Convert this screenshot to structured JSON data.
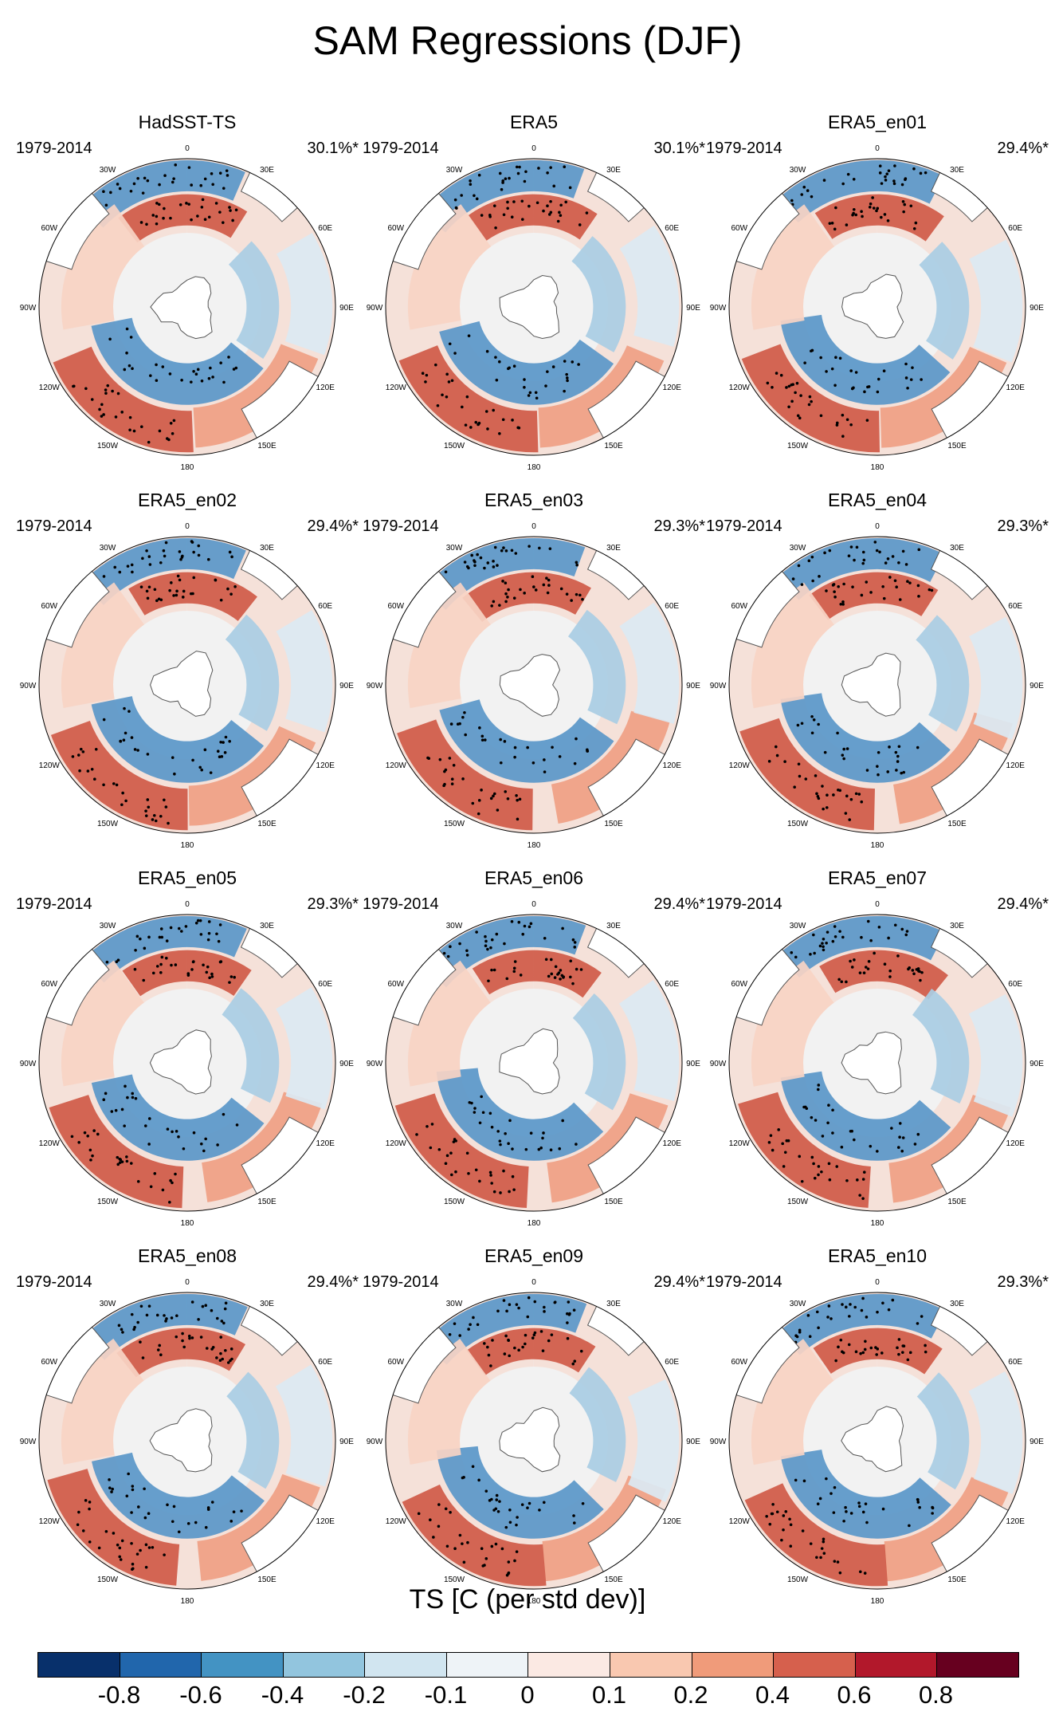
{
  "figure": {
    "title": "SAM Regressions (DJF)"
  },
  "lon_labels": [
    "0",
    "30E",
    "60E",
    "90E",
    "120E",
    "150E",
    "180",
    "150W",
    "120W",
    "90W",
    "60W",
    "30W"
  ],
  "panels": [
    {
      "title": "HadSST-TS",
      "period": "1979-2014",
      "variance": "30.1%*"
    },
    {
      "title": "ERA5",
      "period": "1979-2014",
      "variance": "30.1%*"
    },
    {
      "title": "ERA5_en01",
      "period": "1979-2014",
      "variance": "29.4%*"
    },
    {
      "title": "ERA5_en02",
      "period": "1979-2014",
      "variance": "29.4%*"
    },
    {
      "title": "ERA5_en03",
      "period": "1979-2014",
      "variance": "29.3%*"
    },
    {
      "title": "ERA5_en04",
      "period": "1979-2014",
      "variance": "29.3%*"
    },
    {
      "title": "ERA5_en05",
      "period": "1979-2014",
      "variance": "29.3%*"
    },
    {
      "title": "ERA5_en06",
      "period": "1979-2014",
      "variance": "29.4%*"
    },
    {
      "title": "ERA5_en07",
      "period": "1979-2014",
      "variance": "29.4%*"
    },
    {
      "title": "ERA5_en08",
      "period": "1979-2014",
      "variance": "29.4%*"
    },
    {
      "title": "ERA5_en09",
      "period": "1979-2014",
      "variance": "29.4%*"
    },
    {
      "title": "ERA5_en10",
      "period": "1979-2014",
      "variance": "29.3%*"
    }
  ],
  "colorbar": {
    "title": "TS [C (per std dev)]",
    "colors": [
      "#08306b",
      "#2166ac",
      "#4393c3",
      "#92c5de",
      "#d1e5f0",
      "#eef3f7",
      "#fbe9e3",
      "#f9c8b0",
      "#f09b7a",
      "#d6604d",
      "#b2182b",
      "#67001f"
    ],
    "tick_labels": [
      "-0.8",
      "-0.6",
      "-0.4",
      "-0.2",
      "-0.1",
      "0",
      "0.1",
      "0.2",
      "0.4",
      "0.6",
      "0.8"
    ]
  },
  "colors": {
    "strong_blue": "#5a97c9",
    "mid_blue": "#a9cde4",
    "light_blue": "#dbe9f3",
    "neutral": "#f2f2f2",
    "light_red": "#f7d4c4",
    "mid_red": "#ef9f84",
    "strong_red": "#cf5a48",
    "land": "#ffffff"
  }
}
